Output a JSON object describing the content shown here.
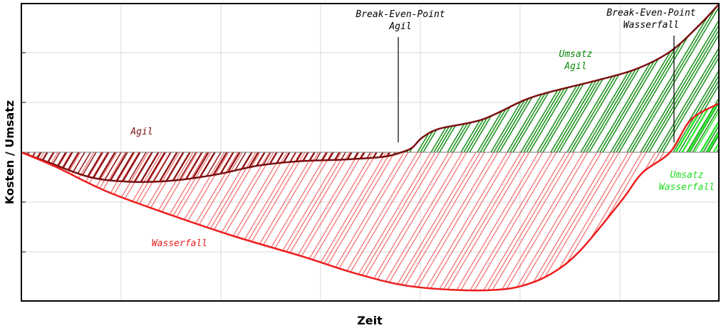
{
  "chart_data": {
    "type": "area",
    "xlabel": "Zeit",
    "ylabel": "Kosten / Umsatz",
    "grid": true,
    "x_range": [
      0,
      1
    ],
    "y_range": [
      -1.0,
      1.0
    ],
    "baseline": 0,
    "series": [
      {
        "name": "Agil",
        "color": "#7a0f10",
        "x": [
          0.0,
          0.04,
          0.1,
          0.16,
          0.22,
          0.28,
          0.34,
          0.4,
          0.46,
          0.52,
          0.545,
          0.56,
          0.575,
          0.6,
          0.66,
          0.72,
          0.76,
          0.82,
          0.88,
          0.93,
          0.97,
          1.0
        ],
        "y": [
          0.0,
          -0.07,
          -0.17,
          -0.2,
          -0.19,
          -0.15,
          -0.09,
          -0.06,
          -0.05,
          -0.03,
          0.0,
          0.03,
          0.1,
          0.16,
          0.22,
          0.35,
          0.41,
          0.48,
          0.56,
          0.68,
          0.85,
          1.0
        ]
      },
      {
        "name": "Wasserfall",
        "color": "#ee1c1c",
        "x": [
          0.0,
          0.05,
          0.12,
          0.2,
          0.3,
          0.4,
          0.48,
          0.55,
          0.62,
          0.68,
          0.72,
          0.76,
          0.8,
          0.86,
          0.89,
          0.93,
          0.96,
          1.0
        ],
        "y": [
          0.0,
          -0.1,
          -0.26,
          -0.4,
          -0.56,
          -0.7,
          -0.82,
          -0.9,
          -0.93,
          -0.93,
          -0.9,
          -0.82,
          -0.67,
          -0.33,
          -0.14,
          0.0,
          0.22,
          0.33
        ]
      }
    ],
    "fill_colors": {
      "kosten_agil": "#8b0d0d",
      "kosten_wasserfall": "#f14545",
      "umsatz_agil": "#0a8a0a",
      "umsatz_wasserfall": "#22ee22"
    },
    "annotations": [
      {
        "lines": [
          "Break-Even-Point",
          "Agil"
        ],
        "x": 0.545,
        "y": 0.0,
        "color": "#000000"
      },
      {
        "lines": [
          "Break-Even-Point",
          "Wasserfall"
        ],
        "x": 0.93,
        "y": 0.0,
        "color": "#000000"
      },
      {
        "lines": [
          "Agil"
        ],
        "x": 0.175,
        "y": 0.15,
        "color": "#7a0f10"
      },
      {
        "lines": [
          "Wasserfall"
        ],
        "x": 0.23,
        "y": -0.62,
        "color": "#ee1c1c"
      },
      {
        "lines": [
          "Umsatz",
          "Agil"
        ],
        "x": 0.8,
        "y": 0.64,
        "color": "#0a8a0a"
      },
      {
        "lines": [
          "Umsatz",
          "Wasserfall"
        ],
        "x": 0.97,
        "y": -0.22,
        "color": "#1fdc1f"
      }
    ]
  }
}
